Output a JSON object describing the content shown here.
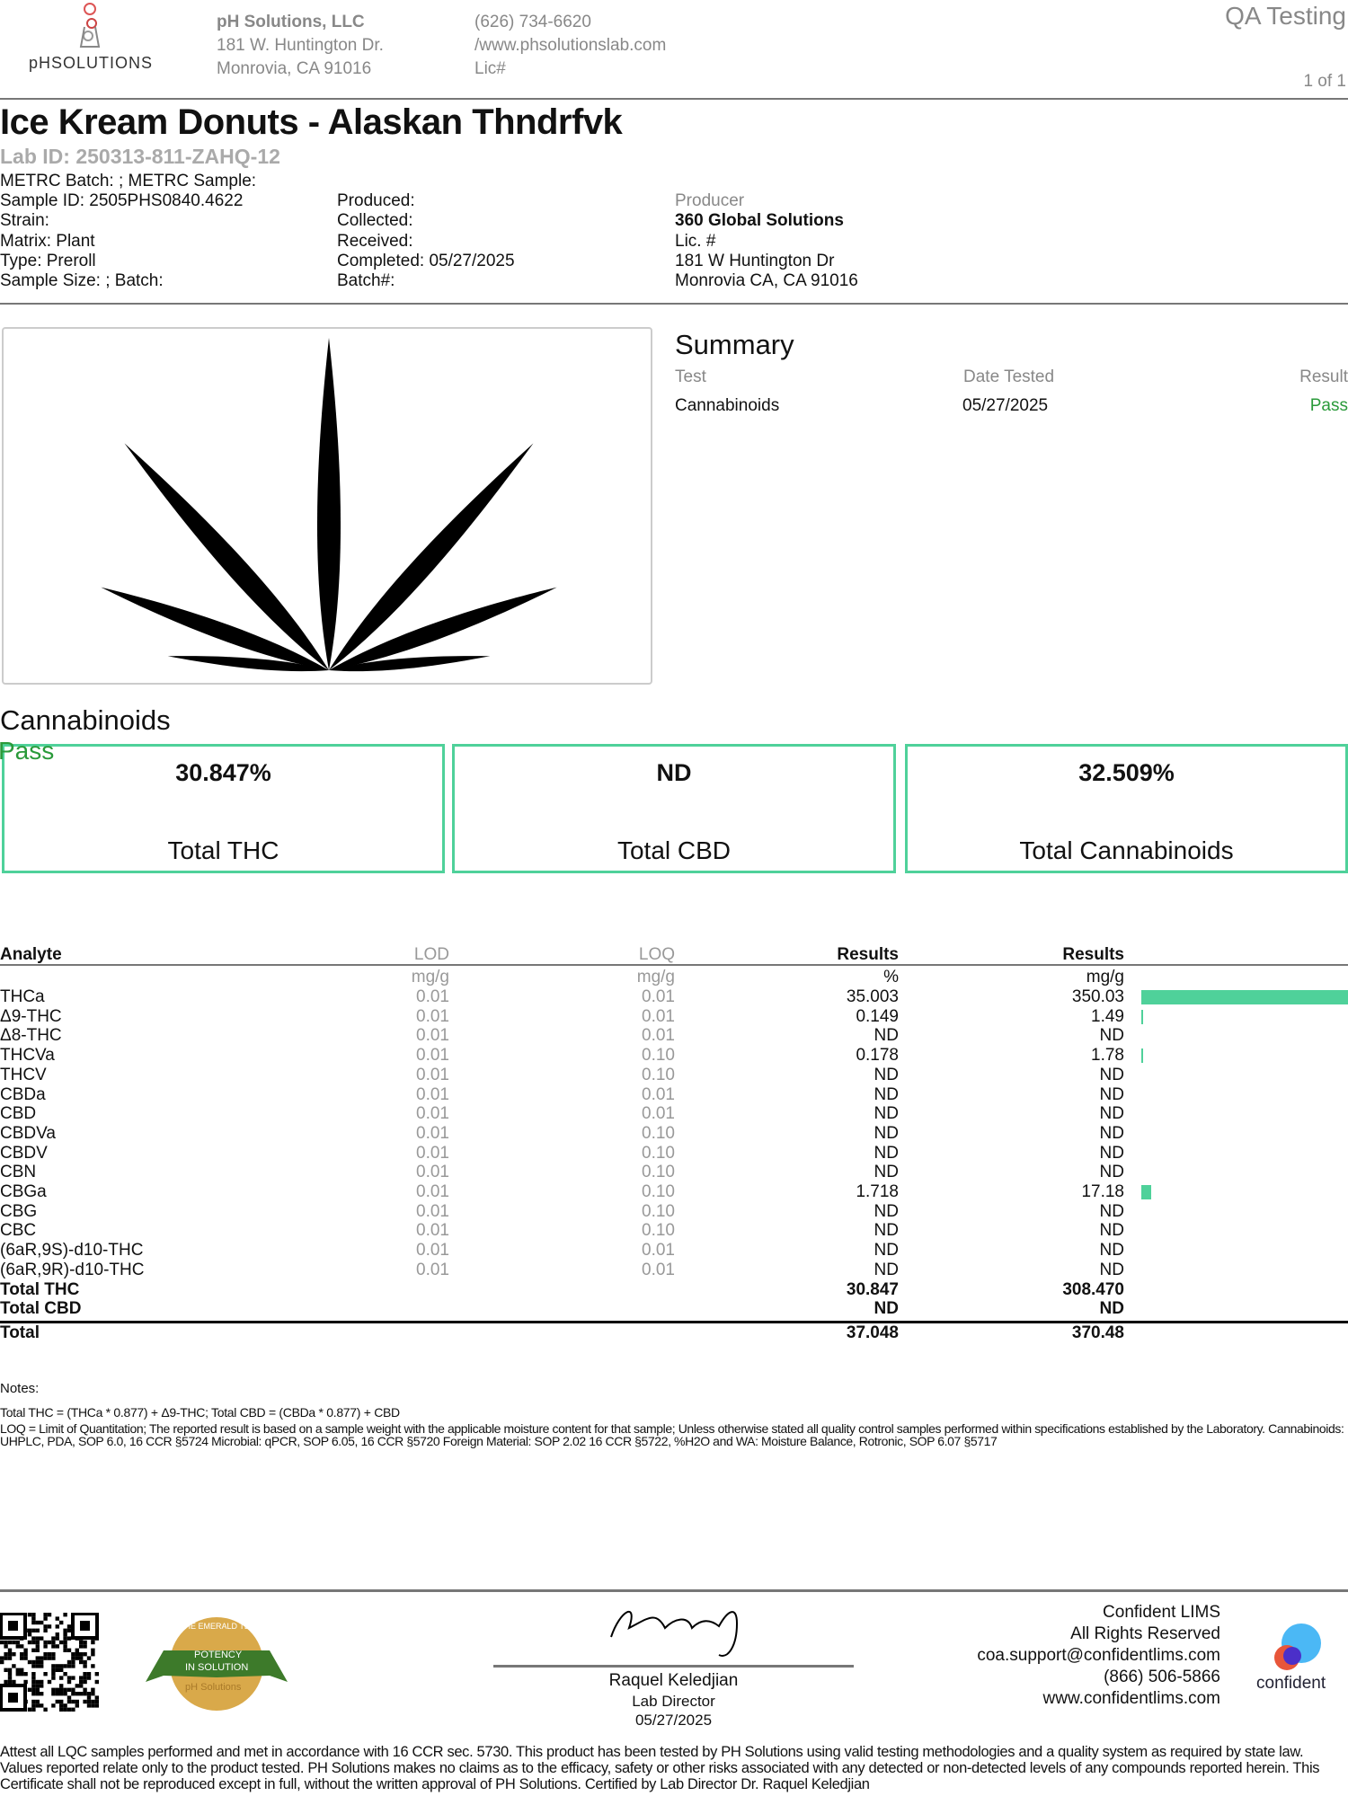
{
  "header": {
    "logo_text": "pHSOLUTIONS",
    "company": "pH Solutions, LLC",
    "address1": "181 W. Huntington Dr.",
    "address2": "Monrovia, CA 91016",
    "phone": "(626) 734-6620",
    "website": "/www.phsolutionslab.com",
    "lic": "Lic#",
    "doc_type": "QA Testing",
    "page": "1 of 1"
  },
  "product": {
    "title": "Ice Kream Donuts - Alaskan Thndrfvk",
    "lab_id": "Lab ID: 250313-811-ZAHQ-12",
    "metrc": "METRC Batch: ; METRC Sample:",
    "col1": [
      "Sample ID: 2505PHS0840.4622",
      "Strain:",
      "Matrix: Plant",
      "Type: Preroll",
      "Sample Size: ; Batch:"
    ],
    "col2": [
      "Produced:",
      "Collected:",
      "Received:",
      "Completed: 05/27/2025",
      "Batch#:"
    ],
    "producer_label": "Producer",
    "producer": [
      "360 Global Solutions",
      "Lic. #",
      "181 W Huntington Dr",
      "Monrovia CA, CA 91016"
    ]
  },
  "summary": {
    "title": "Summary",
    "headers": [
      "Test",
      "Date Tested",
      "Result"
    ],
    "rows": [
      {
        "test": "Cannabinoids",
        "date": "05/27/2025",
        "result": "Pass"
      }
    ]
  },
  "cannabinoids": {
    "title": "Cannabinoids",
    "status": "Pass",
    "accent": "#4fd19a",
    "boxes": [
      {
        "value": "30.847%",
        "label": "Total THC"
      },
      {
        "value": "ND",
        "label": "Total CBD"
      },
      {
        "value": "32.509%",
        "label": "Total Cannabinoids"
      }
    ],
    "headers": [
      "Analyte",
      "LOD",
      "LOQ",
      "Results",
      "Results"
    ],
    "units": [
      "mg/g",
      "mg/g",
      "%",
      "mg/g"
    ],
    "rows": [
      [
        "THCa",
        "0.01",
        "0.01",
        "35.003",
        "350.03"
      ],
      [
        "Δ9-THC",
        "0.01",
        "0.01",
        "0.149",
        "1.49"
      ],
      [
        "Δ8-THC",
        "0.01",
        "0.01",
        "ND",
        "ND"
      ],
      [
        "THCVa",
        "0.01",
        "0.10",
        "0.178",
        "1.78"
      ],
      [
        "THCV",
        "0.01",
        "0.10",
        "ND",
        "ND"
      ],
      [
        "CBDa",
        "0.01",
        "0.01",
        "ND",
        "ND"
      ],
      [
        "CBD",
        "0.01",
        "0.01",
        "ND",
        "ND"
      ],
      [
        "CBDVa",
        "0.01",
        "0.10",
        "ND",
        "ND"
      ],
      [
        "CBDV",
        "0.01",
        "0.10",
        "ND",
        "ND"
      ],
      [
        "CBN",
        "0.01",
        "0.10",
        "ND",
        "ND"
      ],
      [
        "CBGa",
        "0.01",
        "0.10",
        "1.718",
        "17.18"
      ],
      [
        "CBG",
        "0.01",
        "0.10",
        "ND",
        "ND"
      ],
      [
        "CBC",
        "0.01",
        "0.10",
        "ND",
        "ND"
      ],
      [
        "(6aR,9S)-d10-THC",
        "0.01",
        "0.01",
        "ND",
        "ND"
      ],
      [
        "(6aR,9R)-d10-THC",
        "0.01",
        "0.01",
        "ND",
        "ND"
      ]
    ],
    "totals": [
      [
        "Total THC",
        "30.847",
        "308.470"
      ],
      [
        "Total CBD",
        "ND",
        "ND"
      ]
    ],
    "total": [
      "Total",
      "37.048",
      "370.48"
    ]
  },
  "notes": {
    "label": "Notes:",
    "lines": [
      "Total THC = (THCa * 0.877) + Δ9-THC; Total CBD = (CBDa * 0.877) + CBD",
      "LOQ = Limit of Quantitation; The reported result is based on a sample weight with the applicable moisture content for that sample; Unless otherwise stated all quality control samples performed within specifications established by the Laboratory. Cannabinoids: UHPLC, PDA, SOP 6.0, 16 CCR §5724 Microbial: qPCR, SOP 6.05, 16 CCR §5720 Foreign Material: SOP 2.02 16 CCR §5722, %H2O and WA: Moisture Balance, Rotronic, SOP 6.07 §5717"
    ]
  },
  "footer": {
    "seal_text": [
      "THE EMERALD TEST",
      "POTENCY",
      "IN SOLUTION",
      "pH Solutions"
    ],
    "signer": "Raquel Keledjian",
    "signer_title": "Lab Director",
    "sign_date": "05/27/2025",
    "lims": [
      "Confident LIMS",
      "All Rights Reserved",
      "coa.support@confidentlims.com",
      "(866) 506-5866",
      "www.confidentlims.com"
    ],
    "lims_logo": "confident",
    "disclaimer": "Attest all LQC samples performed and met in accordance with 16 CCR sec. 5730. This product has been tested by PH Solutions using valid testing methodologies and a quality system as required by state law. Values reported relate only to the product tested. PH Solutions makes no claims as to the efficacy, safety or other risks associated with any detected or non-detected levels of any compounds reported herein. This Certificate shall not be reproduced except in full, without the written approval of PH Solutions. Certified by Lab Director  Dr. Raquel Keledjian"
  }
}
